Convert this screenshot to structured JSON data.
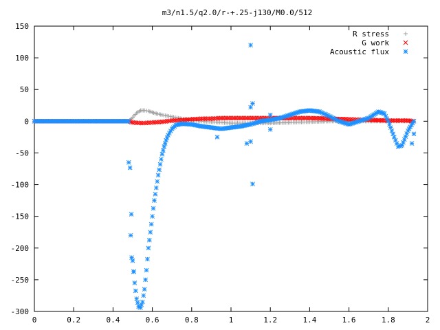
{
  "chart_data": {
    "type": "scatter",
    "title": "m3/n1.5/q2.0/r-+.25-j130/M0.0/512",
    "xlabel": "",
    "ylabel": "",
    "xlim": [
      0,
      2
    ],
    "ylim": [
      -300,
      150
    ],
    "grid": false,
    "legend_position": "top-right",
    "x_ticks": [
      "0",
      "0.2",
      "0.4",
      "0.6",
      "0.8",
      "1",
      "1.2",
      "1.4",
      "1.6",
      "1.8",
      "2"
    ],
    "y_ticks": [
      "150",
      "100",
      "50",
      "0",
      "-50",
      "-100",
      "-150",
      "-200",
      "-250",
      "-300"
    ],
    "series": [
      {
        "name": "R stress",
        "color": "#a0a0a0",
        "marker": "plus",
        "x": [
          0.0,
          0.1,
          0.2,
          0.3,
          0.4,
          0.48,
          0.5,
          0.52,
          0.54,
          0.56,
          0.58,
          0.6,
          0.62,
          0.65,
          0.7,
          0.75,
          0.8,
          0.85,
          0.9,
          0.95,
          1.0,
          1.05,
          1.1,
          1.15,
          1.2,
          1.3,
          1.4,
          1.5,
          1.6,
          1.7,
          1.8,
          1.9,
          1.93
        ],
        "y": [
          0,
          0,
          0,
          0,
          0,
          0,
          6,
          13,
          17,
          17,
          16,
          14,
          12,
          10,
          7,
          4,
          2,
          0,
          -1,
          -2,
          -3,
          -3,
          -3,
          -3,
          -3,
          -2,
          -1,
          0,
          0,
          0,
          0,
          0,
          0
        ]
      },
      {
        "name": "G work",
        "color": "#ff0000",
        "marker": "x",
        "x": [
          0.0,
          0.1,
          0.2,
          0.3,
          0.4,
          0.48,
          0.5,
          0.55,
          0.6,
          0.65,
          0.7,
          0.75,
          0.8,
          0.85,
          0.9,
          0.95,
          1.0,
          1.05,
          1.1,
          1.15,
          1.2,
          1.3,
          1.4,
          1.5,
          1.6,
          1.7,
          1.8,
          1.9,
          1.93
        ],
        "y": [
          0,
          0,
          0,
          0,
          0,
          0,
          -2,
          -3,
          -2,
          -1,
          1,
          2,
          3,
          4,
          4,
          5,
          5,
          5,
          5,
          5,
          5,
          5,
          5,
          4,
          3,
          2,
          1,
          1,
          0
        ]
      },
      {
        "name": "Acoustic flux",
        "color": "#1e90ff",
        "marker": "star",
        "x": [
          0.0,
          0.05,
          0.1,
          0.15,
          0.2,
          0.25,
          0.3,
          0.35,
          0.4,
          0.45,
          0.48,
          0.5,
          0.51,
          0.52,
          0.53,
          0.54,
          0.55,
          0.56,
          0.57,
          0.58,
          0.59,
          0.6,
          0.61,
          0.62,
          0.63,
          0.64,
          0.65,
          0.66,
          0.67,
          0.68,
          0.7,
          0.72,
          0.75,
          0.8,
          0.85,
          0.9,
          0.95,
          1.0,
          1.05,
          1.08,
          1.1,
          1.12,
          1.15,
          1.2,
          1.25,
          1.3,
          1.35,
          1.4,
          1.45,
          1.5,
          1.55,
          1.6,
          1.65,
          1.7,
          1.75,
          1.78,
          1.8,
          1.83,
          1.85,
          1.87,
          1.9,
          1.93
        ],
        "y": [
          0,
          0,
          0,
          0,
          0,
          0,
          0,
          0,
          0,
          0,
          0,
          -220,
          -255,
          -280,
          -292,
          -294,
          -285,
          -265,
          -235,
          -200,
          -175,
          -150,
          -125,
          -105,
          -85,
          -68,
          -52,
          -40,
          -30,
          -22,
          -12,
          -6,
          -4,
          -5,
          -8,
          -10,
          -12,
          -10,
          -8,
          -6,
          -5,
          -3,
          0,
          2,
          5,
          10,
          15,
          17,
          15,
          8,
          0,
          -5,
          0,
          5,
          15,
          12,
          0,
          -25,
          -40,
          -38,
          -15,
          0
        ],
        "outliers": [
          {
            "x": 0.48,
            "y": -65
          },
          {
            "x": 0.49,
            "y": -180
          },
          {
            "x": 0.495,
            "y": -215
          },
          {
            "x": 0.505,
            "y": -237
          },
          {
            "x": 1.1,
            "y": 120
          },
          {
            "x": 1.11,
            "y": 28
          },
          {
            "x": 1.1,
            "y": 22
          },
          {
            "x": 1.11,
            "y": -99
          },
          {
            "x": 1.08,
            "y": -35
          },
          {
            "x": 1.1,
            "y": -32
          },
          {
            "x": 0.93,
            "y": -25
          },
          {
            "x": 1.2,
            "y": 10
          },
          {
            "x": 1.2,
            "y": -13
          },
          {
            "x": 1.92,
            "y": -35
          },
          {
            "x": 1.93,
            "y": -20
          }
        ]
      }
    ]
  }
}
